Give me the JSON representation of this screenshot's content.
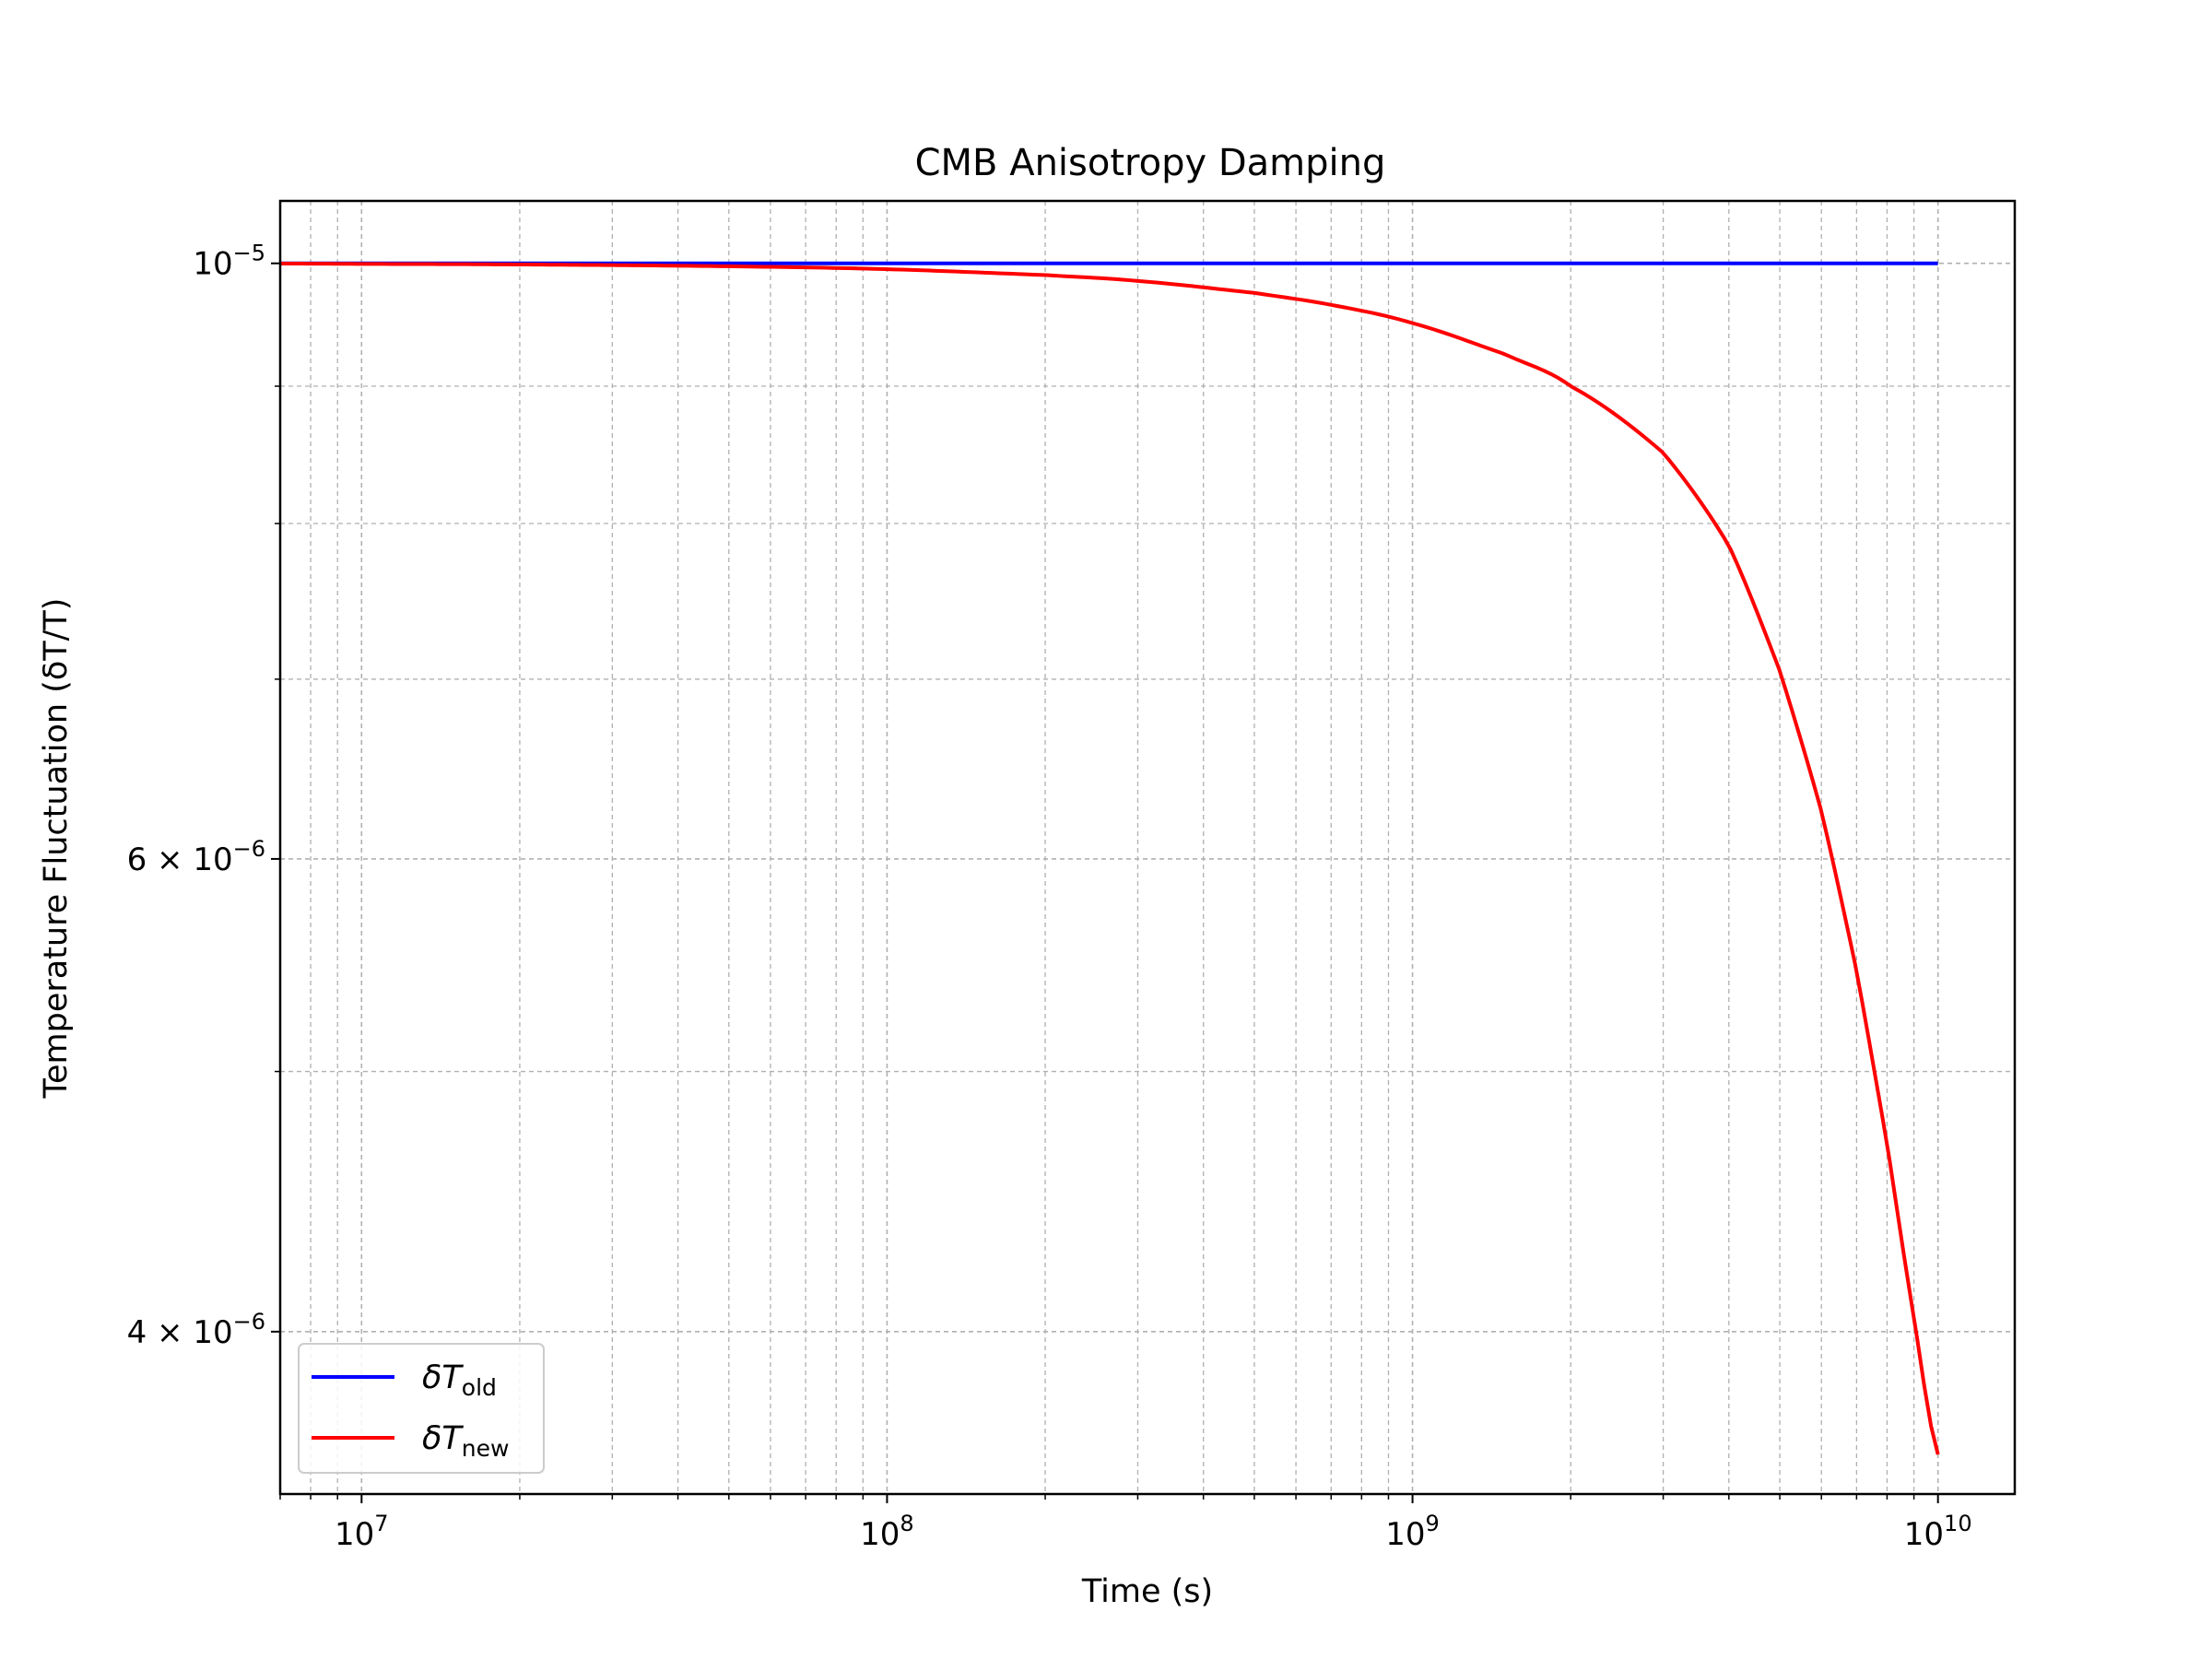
{
  "chart_data": {
    "type": "line",
    "title": "CMB Anisotropy Damping",
    "xlabel": "Time (s)",
    "ylabel": "Temperature Fluctuation (δT/T)",
    "x_scale": "log",
    "y_scale": "log",
    "xlim": [
      7000000,
      14000000000
    ],
    "ylim": [
      3.48e-06,
      1.055e-05
    ],
    "grid": true,
    "grid_which": "both",
    "legend_placement": "lower-left",
    "x_ticks": [
      {
        "value": 10000000,
        "base": "10",
        "exp": "7"
      },
      {
        "value": 100000000,
        "base": "10",
        "exp": "8"
      },
      {
        "value": 1000000000,
        "base": "10",
        "exp": "9"
      },
      {
        "value": 10000000000,
        "base": "10",
        "exp": "10"
      }
    ],
    "y_ticks": [
      {
        "value": 1e-05,
        "base": "10",
        "exp": "−5"
      },
      {
        "value": 6e-06,
        "base": "6 × 10",
        "exp": "−6"
      },
      {
        "value": 4e-06,
        "base": "4 × 10",
        "exp": "−6"
      }
    ],
    "y_minor_ticks": [
      5e-06,
      7e-06,
      8e-06,
      9e-06
    ],
    "series": [
      {
        "name_main": "δT",
        "name_sub": "old",
        "color": "#0000ff",
        "x": [
          7000000,
          10000000000
        ],
        "y": [
          1e-05,
          1e-05
        ]
      },
      {
        "name_main": "δT",
        "name_sub": "new",
        "color": "#ff0000",
        "x": [
          7000000,
          10000000,
          20000000,
          50000000,
          100000000,
          200000000,
          300000000,
          500000000,
          700000000,
          1000000000,
          1500000000,
          2000000000,
          3000000000,
          4000000000,
          5000000000,
          6000000000,
          7000000000,
          8000000000,
          9000000000,
          10000000000
        ],
        "y": [
          9.998e-06,
          9.995e-06,
          9.99e-06,
          9.975e-06,
          9.95e-06,
          9.9e-06,
          9.85e-06,
          9.75e-06,
          9.65e-06,
          9.5e-06,
          9.25e-06,
          9e-06,
          8.5e-06,
          7.85e-06,
          7.05e-06,
          6.25e-06,
          5.45e-06,
          4.7e-06,
          4.05e-06,
          3.6e-06
        ]
      }
    ]
  }
}
